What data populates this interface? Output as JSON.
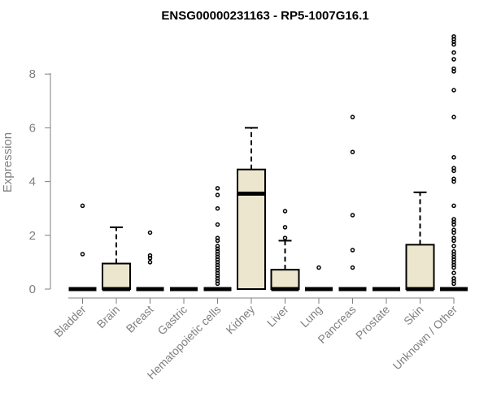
{
  "chart_data": {
    "type": "boxplot",
    "title": "ENSG00000231163 - RP5-1007G16.1",
    "ylabel": "Expression",
    "xlabel": "",
    "ylim": [
      0,
      9.5
    ],
    "yticks": [
      0,
      2,
      4,
      6,
      8
    ],
    "box_fill": "#ede6cf",
    "categories": [
      "Bladder",
      "Brain",
      "Breast",
      "Gastric",
      "Hematopoietic cells",
      "Kidney",
      "Liver",
      "Lung",
      "Pancreas",
      "Prostate",
      "Skin",
      "Unknown / Other"
    ],
    "boxes": [
      {
        "name": "Bladder",
        "q1": 0,
        "median": 0,
        "q3": 0,
        "whisker_low": 0,
        "whisker_high": 0,
        "outliers": [
          3.1,
          1.3
        ]
      },
      {
        "name": "Brain",
        "q1": 0,
        "median": 0,
        "q3": 0.95,
        "whisker_low": 0,
        "whisker_high": 2.3,
        "outliers": []
      },
      {
        "name": "Breast",
        "q1": 0,
        "median": 0,
        "q3": 0,
        "whisker_low": 0,
        "whisker_high": 0,
        "outliers": [
          2.1,
          1.25,
          1.15,
          1.0
        ]
      },
      {
        "name": "Gastric",
        "q1": 0,
        "median": 0,
        "q3": 0,
        "whisker_low": 0,
        "whisker_high": 0,
        "outliers": []
      },
      {
        "name": "Hematopoietic cells",
        "q1": 0,
        "median": 0,
        "q3": 0,
        "whisker_low": 0,
        "whisker_high": 0,
        "outliers": [
          3.75,
          3.5,
          3.0,
          2.4,
          1.9,
          1.8,
          1.6,
          1.5,
          1.4,
          1.3,
          1.2,
          1.1,
          1.0,
          0.9,
          0.8,
          0.7,
          0.6,
          0.5,
          0.4,
          0.3,
          0.2
        ]
      },
      {
        "name": "Kidney",
        "q1": 0,
        "median": 3.55,
        "q3": 4.45,
        "whisker_low": 0,
        "whisker_high": 6.0,
        "outliers": []
      },
      {
        "name": "Liver",
        "q1": 0,
        "median": 0,
        "q3": 0.72,
        "whisker_low": 0,
        "whisker_high": 1.8,
        "outliers": [
          2.9,
          2.3,
          1.9
        ]
      },
      {
        "name": "Lung",
        "q1": 0,
        "median": 0,
        "q3": 0,
        "whisker_low": 0,
        "whisker_high": 0,
        "outliers": [
          0.8
        ]
      },
      {
        "name": "Pancreas",
        "q1": 0,
        "median": 0,
        "q3": 0,
        "whisker_low": 0,
        "whisker_high": 0,
        "outliers": [
          6.4,
          5.1,
          2.75,
          1.45,
          0.8
        ]
      },
      {
        "name": "Prostate",
        "q1": 0,
        "median": 0,
        "q3": 0,
        "whisker_low": 0,
        "whisker_high": 0,
        "outliers": []
      },
      {
        "name": "Skin",
        "q1": 0,
        "median": 0,
        "q3": 1.65,
        "whisker_low": 0,
        "whisker_high": 3.6,
        "outliers": []
      },
      {
        "name": "Unknown / Other",
        "q1": 0,
        "median": 0,
        "q3": 0,
        "whisker_low": 0,
        "whisker_high": 0,
        "outliers": [
          9.4,
          9.3,
          9.2,
          9.1,
          8.8,
          8.55,
          8.2,
          8.1,
          7.4,
          6.4,
          4.9,
          4.5,
          4.4,
          4.1,
          4.0,
          3.1,
          2.6,
          2.5,
          2.4,
          2.2,
          2.1,
          1.9,
          1.8,
          1.6,
          1.4,
          1.3,
          1.2,
          1.1,
          1.0,
          0.9,
          0.8,
          0.6,
          0.4,
          0.3,
          0.2
        ]
      }
    ]
  }
}
